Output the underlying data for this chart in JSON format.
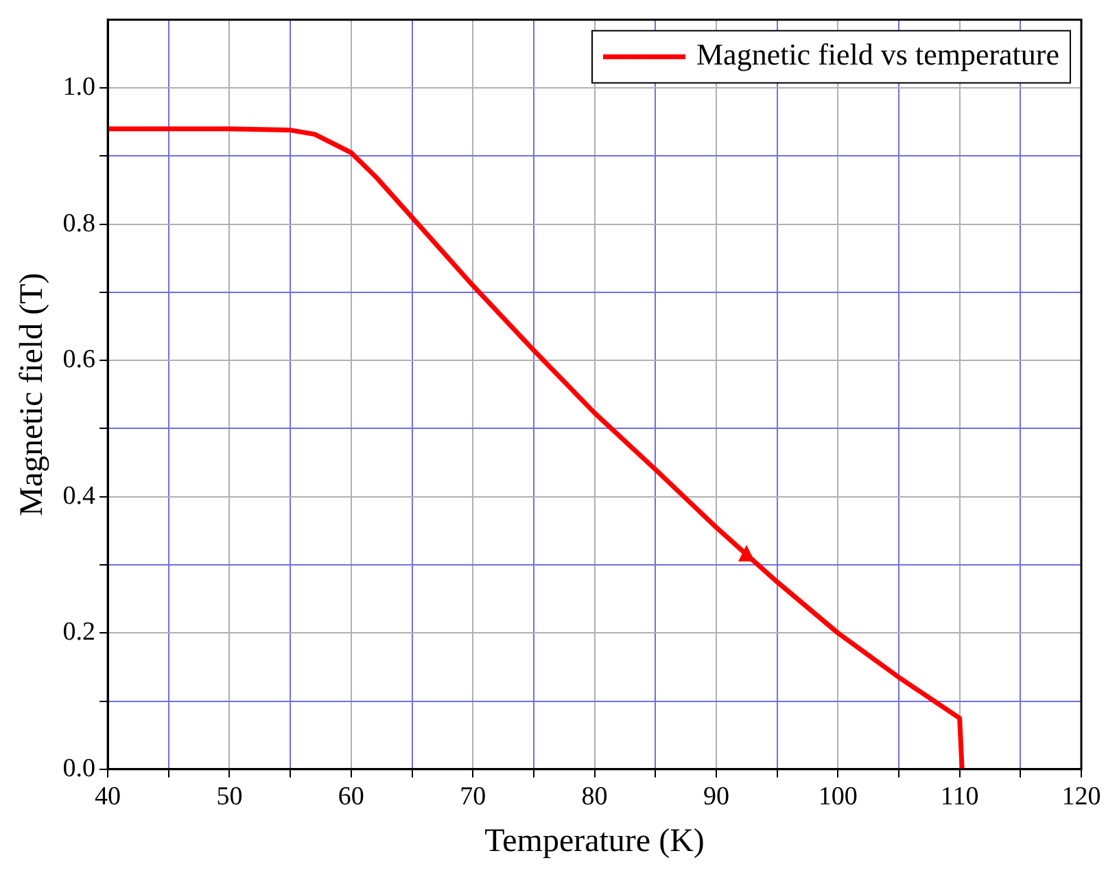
{
  "chart_data": {
    "type": "line",
    "xlabel": "Temperature (K)",
    "ylabel": "Magnetic field (T)",
    "xlim": [
      40,
      120
    ],
    "ylim": [
      0,
      1.1
    ],
    "xticks": [
      40,
      {
        "value": 45,
        "label": null
      },
      50,
      {
        "value": 55,
        "label": null
      },
      60,
      {
        "value": 65,
        "label": null
      },
      70,
      {
        "value": 75,
        "label": null
      },
      80,
      {
        "value": 85,
        "label": null
      },
      90,
      {
        "value": 95,
        "label": null
      },
      100,
      {
        "value": 105,
        "label": null
      },
      110,
      {
        "value": 115,
        "label": null
      },
      120
    ],
    "yticks": [
      {
        "value": 0,
        "label": "0.0"
      },
      {
        "value": 0.1,
        "label": null
      },
      0.2,
      {
        "value": 0.3,
        "label": null
      },
      0.4,
      {
        "value": 0.5,
        "label": null
      },
      0.6,
      {
        "value": 0.7,
        "label": null
      },
      0.8,
      {
        "value": 0.9,
        "label": null
      },
      {
        "value": 1,
        "label": "1.0"
      }
    ],
    "grid": true,
    "legend": "top right",
    "marker": "none",
    "line_style": "solid",
    "series": [
      {
        "name": "Magnetic field vs temperature",
        "color": "#ff0000",
        "x": [
          40,
          45,
          50,
          55,
          57,
          60,
          62,
          65,
          70,
          75,
          80,
          85,
          90,
          95,
          100,
          105,
          110,
          110.2
        ],
        "values": [
          0.94,
          0.94,
          0.94,
          0.938,
          0.932,
          0.905,
          0.87,
          0.81,
          0.71,
          0.615,
          0.523,
          0.44,
          0.355,
          0.275,
          0.2,
          0.135,
          0.075,
          0
        ]
      }
    ]
  }
}
